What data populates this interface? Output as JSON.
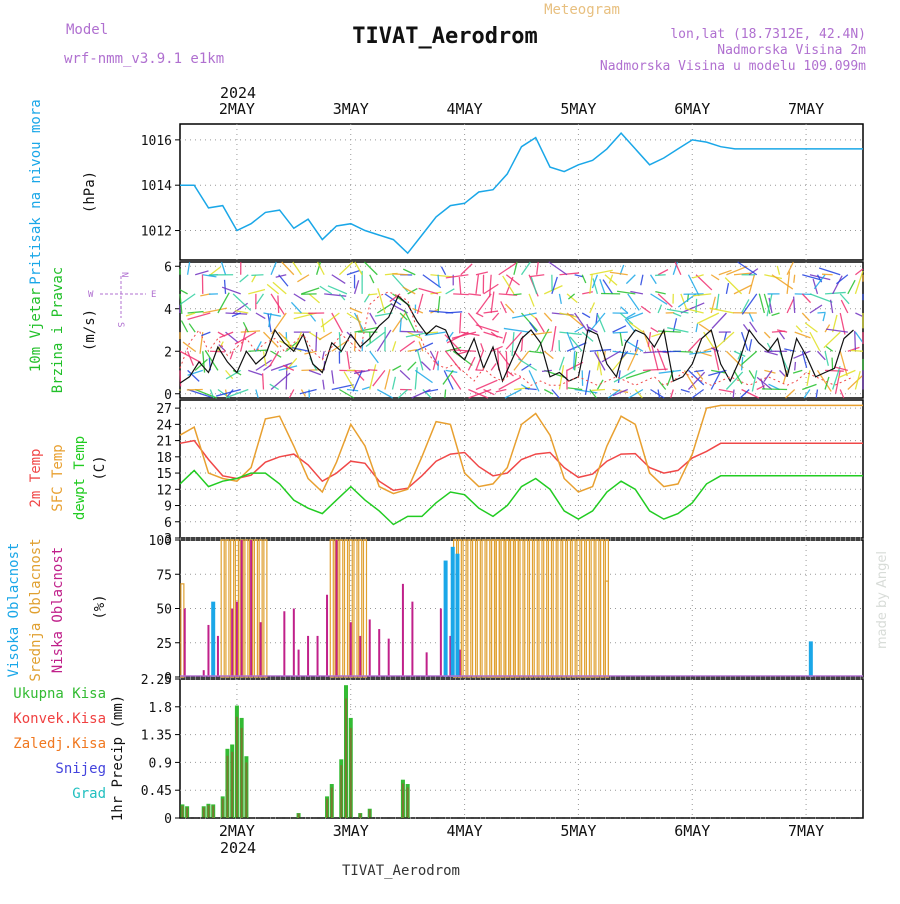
{
  "header": {
    "model_label": "Model",
    "model_name": "wrf-nmm_v3.9.1 e1km",
    "title": "TIVAT_Aerodrom",
    "subtitle": "Meteogram",
    "location": "lon,lat (18.7312E, 42.4N)",
    "elevation": "Nadmorska Visina 2m",
    "model_elevation": "Nadmorska Visina u modelu 109.099m",
    "footer": "TIVAT_Aerodrom",
    "watermark": "made by Angel",
    "year": "2024"
  },
  "days": [
    "2MAY",
    "3MAY",
    "4MAY",
    "5MAY",
    "6MAY",
    "7MAY"
  ],
  "colors": {
    "pressure": "#1aa7e8",
    "wind": "#22c02a",
    "temp": "#f04848",
    "sfc": "#e8a030",
    "dewpt": "#22cc22",
    "high_cloud": "#1aa7e8",
    "mid_cloud": "#e0a030",
    "low_cloud": "#c0208a",
    "total_precip": "#33bb33",
    "conv_precip": "#f04040",
    "frozen_precip": "#f07820",
    "snow": "#4444dd",
    "hail": "#22c0c0"
  },
  "chart_data": [
    {
      "type": "line",
      "name": "pressure",
      "ylabel": [
        "Pritisak na nivou mora",
        "(hPa)"
      ],
      "yticks": [
        1012,
        1014,
        1016
      ],
      "ylim": [
        1010.7,
        1016.7
      ],
      "x_hours": [
        0,
        3,
        6,
        9,
        12,
        15,
        18,
        21,
        24,
        27,
        30,
        33,
        36,
        39,
        42,
        45,
        48,
        51,
        54,
        57,
        60,
        63,
        66,
        69,
        72,
        75,
        78,
        81,
        84,
        87,
        90,
        93,
        96,
        99,
        102,
        105,
        108,
        111,
        114,
        117,
        120,
        123,
        126,
        129,
        132,
        135,
        138,
        141,
        144
      ],
      "values": [
        1014.0,
        1014.0,
        1013.0,
        1013.1,
        1012.0,
        1012.3,
        1012.8,
        1012.9,
        1012.1,
        1012.5,
        1011.6,
        1012.2,
        1012.3,
        1012.0,
        1011.8,
        1011.6,
        1011.0,
        1011.8,
        1012.6,
        1013.1,
        1013.2,
        1013.7,
        1013.8,
        1014.5,
        1015.7,
        1016.1,
        1014.8,
        1014.6,
        1014.9,
        1015.1,
        1015.6,
        1016.3,
        1015.6,
        1014.9,
        1015.2,
        1015.6,
        1016.0,
        1015.9,
        1015.7,
        1015.6,
        1015.6,
        1015.6,
        1015.6,
        1015.6,
        1015.6,
        1015.6,
        1015.6,
        1015.6,
        1015.6
      ]
    },
    {
      "type": "line",
      "name": "wind",
      "ylabel": [
        "10m Vjetar",
        "Brzina i Pravac",
        "(m/s)"
      ],
      "compass": [
        "N",
        "W",
        "E",
        "S"
      ],
      "yticks": [
        0,
        2,
        4,
        6
      ],
      "ylim": [
        -0.2,
        6.2
      ],
      "x_hours": [
        0,
        2,
        4,
        6,
        8,
        10,
        12,
        14,
        16,
        18,
        20,
        22,
        24,
        26,
        28,
        30,
        32,
        34,
        36,
        38,
        40,
        42,
        44,
        46,
        48,
        50,
        52,
        54,
        56,
        58,
        60,
        62,
        64,
        66,
        68,
        70,
        72,
        74,
        76,
        78,
        80,
        82,
        84,
        86,
        88,
        90,
        92,
        94,
        96,
        98,
        100,
        102,
        104,
        106,
        108,
        110,
        112,
        114,
        116,
        118,
        120,
        122,
        124,
        126,
        128,
        130,
        132,
        134,
        136,
        138,
        140,
        142
      ],
      "values": [
        0.5,
        0.8,
        1.5,
        1.0,
        2.2,
        1.5,
        1.0,
        2.0,
        1.4,
        1.8,
        3.0,
        2.4,
        2.0,
        2.8,
        1.4,
        1.0,
        2.4,
        2.0,
        2.8,
        2.2,
        2.6,
        3.2,
        3.6,
        4.6,
        4.2,
        3.4,
        2.8,
        3.2,
        3.0,
        2.0,
        1.6,
        2.6,
        1.2,
        2.2,
        0.6,
        1.6,
        2.6,
        3.0,
        2.4,
        0.8,
        1.0,
        0.6,
        0.8,
        3.0,
        2.8,
        1.4,
        0.8,
        2.4,
        3.0,
        2.8,
        2.2,
        3.0,
        0.6,
        0.8,
        1.4,
        2.6,
        3.0,
        1.4,
        0.6,
        1.6,
        3.0,
        2.4,
        2.0,
        2.6,
        0.8,
        2.6,
        1.8,
        0.8,
        1.0,
        1.2,
        2.6,
        3.0
      ],
      "gusts": [
        1.2,
        2.4,
        3.0,
        2.0,
        2.6,
        1.8,
        2.2,
        2.6,
        2.0,
        2.4,
        2.6,
        2.0,
        2.4,
        2.8,
        2.0,
        1.6,
        2.2,
        2.8,
        2.4,
        2.0,
        4.2,
        4.6,
        4.8,
        4.6,
        4.4,
        3.0,
        2.0,
        1.4,
        1.2,
        1.4,
        1.0,
        0.6,
        1.2,
        0.8,
        0.6,
        1.0,
        0.8,
        0.4,
        0.6,
        0.4,
        0.4,
        0.6,
        0.8,
        0.6,
        0.4,
        0.6,
        0.8,
        0.6,
        0.4,
        0.6,
        0.8,
        0.4,
        0.6,
        1.0,
        0.8,
        0.6,
        0.4,
        0.6,
        0.8,
        0.6,
        0.4,
        0.6,
        0.8,
        0.6,
        0.4,
        0.6,
        1.0,
        0.8,
        0.6,
        0.4,
        0.6,
        0.8
      ]
    },
    {
      "type": "line",
      "name": "temperature",
      "ylabel": [
        "2m Temp",
        "SFC Temp",
        "dewpt Temp",
        "(C)"
      ],
      "yticks": [
        3,
        6,
        9,
        12,
        15,
        18,
        21,
        24,
        27
      ],
      "ylim": [
        3,
        28.5
      ],
      "x_hours": [
        0,
        3,
        6,
        9,
        12,
        15,
        18,
        21,
        24,
        27,
        30,
        33,
        36,
        39,
        42,
        45,
        48,
        51,
        54,
        57,
        60,
        63,
        66,
        69,
        72,
        75,
        78,
        81,
        84,
        87,
        90,
        93,
        96,
        99,
        102,
        105,
        108,
        111,
        114,
        117,
        120,
        123,
        126,
        129,
        132,
        135,
        138,
        141,
        144
      ],
      "series": [
        {
          "name": "2m",
          "values": [
            20.5,
            21.0,
            17.5,
            14.5,
            14.0,
            14.6,
            17.0,
            18.0,
            18.5,
            16.5,
            13.5,
            15.0,
            17.2,
            16.8,
            13.5,
            11.8,
            12.2,
            14.5,
            17.2,
            18.5,
            18.8,
            16.2,
            14.5,
            15.0,
            17.5,
            18.5,
            18.8,
            16.0,
            14.2,
            14.8,
            17.2,
            18.5,
            18.6,
            16.0,
            15.0,
            15.5,
            17.8,
            19.0,
            20.5,
            20.5,
            20.5,
            20.5,
            20.5,
            20.5,
            20.5,
            20.5,
            20.5,
            20.5,
            20.5
          ]
        },
        {
          "name": "SFC",
          "values": [
            22.0,
            23.5,
            15.0,
            14.0,
            13.5,
            16.0,
            25.0,
            25.5,
            20.0,
            14.0,
            11.5,
            17.0,
            24.0,
            20.0,
            12.5,
            11.2,
            12.0,
            18.0,
            24.5,
            24.0,
            15.0,
            12.5,
            13.0,
            16.0,
            24.0,
            26.0,
            22.0,
            14.0,
            11.5,
            12.5,
            20.0,
            25.5,
            24.0,
            15.0,
            12.5,
            13.0,
            18.5,
            27.0,
            27.5,
            27.5,
            27.5,
            27.5,
            27.5,
            27.5,
            27.5,
            27.5,
            27.5,
            27.5,
            27.5
          ]
        },
        {
          "name": "dewpt",
          "values": [
            13.0,
            15.5,
            12.5,
            13.5,
            14.0,
            15.0,
            15.0,
            13.0,
            10.0,
            8.5,
            7.5,
            10.0,
            12.5,
            10.0,
            8.0,
            5.5,
            7.0,
            7.0,
            9.5,
            11.5,
            11.0,
            8.5,
            7.0,
            9.0,
            12.5,
            14.0,
            12.0,
            8.0,
            6.5,
            8.0,
            11.5,
            13.5,
            12.0,
            8.0,
            6.5,
            7.5,
            9.5,
            13.0,
            14.5,
            14.5,
            14.5,
            14.5,
            14.5,
            14.5,
            14.5,
            14.5,
            14.5,
            14.5,
            14.5
          ]
        }
      ]
    },
    {
      "type": "bar",
      "name": "clouds",
      "ylabel": [
        "Visoka Oblacnost",
        "Srednja Oblacnost",
        "Niska Oblacnost",
        "(%)"
      ],
      "yticks": [
        0,
        25,
        50,
        75,
        100
      ],
      "ylim": [
        0,
        100
      ],
      "mid_blocks": [
        [
          9,
          18
        ],
        [
          32,
          39
        ],
        [
          58,
          71
        ],
        [
          66,
          90
        ]
      ],
      "mid_extra": [
        [
          0.5,
          68
        ],
        [
          90,
          70
        ]
      ],
      "low": [
        [
          1,
          50
        ],
        [
          5,
          5
        ],
        [
          6,
          38
        ],
        [
          8,
          30
        ],
        [
          11,
          50
        ],
        [
          12,
          55
        ],
        [
          13,
          100
        ],
        [
          15,
          100
        ],
        [
          17,
          40
        ],
        [
          22,
          48
        ],
        [
          24,
          50
        ],
        [
          25,
          20
        ],
        [
          27,
          30
        ],
        [
          29,
          30
        ],
        [
          31,
          60
        ],
        [
          33,
          100
        ],
        [
          36,
          40
        ],
        [
          38,
          30
        ],
        [
          40,
          42
        ],
        [
          42,
          35
        ],
        [
          44,
          28
        ],
        [
          47,
          68
        ],
        [
          49,
          55
        ],
        [
          52,
          18
        ],
        [
          55,
          50
        ],
        [
          57,
          30
        ],
        [
          59,
          20
        ]
      ],
      "high": [
        [
          7,
          55
        ],
        [
          56,
          85
        ],
        [
          57.5,
          95
        ],
        [
          58.5,
          90
        ],
        [
          133,
          26
        ]
      ]
    },
    {
      "type": "bar",
      "name": "precipitation",
      "ylabel": [
        "1hr Precip (mm)"
      ],
      "legend": [
        "Ukupna Kisa",
        "Konvek.Kisa",
        "Zaledj.Kisa",
        "Snijeg",
        "Grad"
      ],
      "yticks": [
        0,
        0.45,
        0.9,
        1.35,
        1.8,
        2.25
      ],
      "ylim": [
        0,
        2.25
      ],
      "values": [
        [
          0.5,
          0.22
        ],
        [
          1.5,
          0.19
        ],
        [
          5,
          0.19
        ],
        [
          6,
          0.23
        ],
        [
          7,
          0.22
        ],
        [
          9,
          0.35
        ],
        [
          10,
          1.12
        ],
        [
          11,
          1.19
        ],
        [
          12,
          1.82
        ],
        [
          13,
          1.62
        ],
        [
          14,
          1.0
        ],
        [
          25,
          0.08
        ],
        [
          31,
          0.35
        ],
        [
          32,
          0.55
        ],
        [
          34,
          0.95
        ],
        [
          35,
          2.15
        ],
        [
          36,
          1.62
        ],
        [
          38,
          0.08
        ],
        [
          40,
          0.15
        ],
        [
          47,
          0.62
        ],
        [
          48,
          0.55
        ]
      ]
    }
  ]
}
